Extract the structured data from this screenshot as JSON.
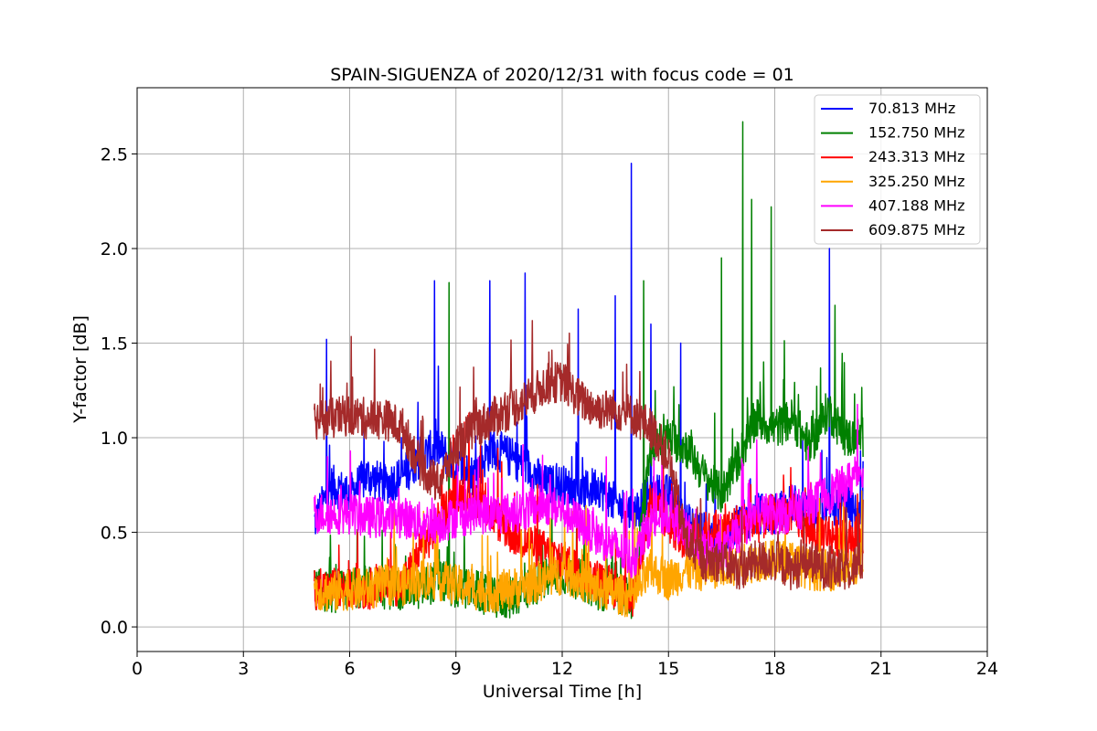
{
  "chart_data": {
    "type": "line",
    "title": "SPAIN-SIGUENZA of 2020/12/31 with focus code = 01",
    "xlabel": "Universal Time [h]",
    "ylabel": "Y-factor [dB]",
    "xlim": [
      0,
      24
    ],
    "ylim": [
      -0.13,
      2.85
    ],
    "xticks": [
      0,
      3,
      6,
      9,
      12,
      15,
      18,
      21,
      24
    ],
    "xtick_labels": [
      "0",
      "3",
      "6",
      "9",
      "12",
      "15",
      "18",
      "21",
      "24"
    ],
    "yticks": [
      0.0,
      0.5,
      1.0,
      1.5,
      2.0,
      2.5
    ],
    "ytick_labels": [
      "0.0",
      "0.5",
      "1.0",
      "1.5",
      "2.0",
      "2.5"
    ],
    "grid": true,
    "legend_position": "top-right",
    "series": [
      {
        "name": " 70.813 MHz",
        "color": "#0000ff",
        "x": [
          5.0,
          5.5,
          6.0,
          6.5,
          7.0,
          7.5,
          8.0,
          8.5,
          9.0,
          9.5,
          10.0,
          10.5,
          11.0,
          11.5,
          12.0,
          12.5,
          13.0,
          13.5,
          14.0,
          14.5,
          15.0,
          15.5,
          16.0,
          16.5,
          17.0,
          17.5,
          18.0,
          18.5,
          19.0,
          19.5,
          20.0,
          20.5
        ],
        "y": [
          0.55,
          0.75,
          0.7,
          0.8,
          0.75,
          0.8,
          0.9,
          0.95,
          0.85,
          0.8,
          0.95,
          0.9,
          0.85,
          0.75,
          0.75,
          0.7,
          0.75,
          0.65,
          0.6,
          0.7,
          0.7,
          0.55,
          0.5,
          0.45,
          0.55,
          0.6,
          0.6,
          0.65,
          0.6,
          0.6,
          0.65,
          0.55
        ],
        "spikes": [
          [
            5.35,
            1.52
          ],
          [
            8.4,
            1.83
          ],
          [
            9.95,
            1.83
          ],
          [
            10.95,
            1.87
          ],
          [
            12.45,
            1.68
          ],
          [
            13.5,
            1.75
          ],
          [
            13.95,
            2.45
          ],
          [
            14.5,
            1.6
          ],
          [
            15.35,
            1.5
          ],
          [
            19.55,
            2.0
          ]
        ]
      },
      {
        "name": "152.750 MHz",
        "color": "#008000",
        "x": [
          5.0,
          5.5,
          6.0,
          6.5,
          7.0,
          7.5,
          8.0,
          8.5,
          9.0,
          9.5,
          10.0,
          10.5,
          11.0,
          11.5,
          12.0,
          12.5,
          13.0,
          13.5,
          14.0,
          14.5,
          15.0,
          15.5,
          16.0,
          16.5,
          17.0,
          17.5,
          18.0,
          18.5,
          19.0,
          19.5,
          20.0,
          20.5
        ],
        "y": [
          0.2,
          0.18,
          0.2,
          0.22,
          0.2,
          0.2,
          0.2,
          0.25,
          0.2,
          0.2,
          0.15,
          0.15,
          0.2,
          0.25,
          0.28,
          0.25,
          0.2,
          0.18,
          0.15,
          0.95,
          1.0,
          0.95,
          0.8,
          0.7,
          0.9,
          1.1,
          1.05,
          1.1,
          0.95,
          1.15,
          1.0,
          1.0
        ],
        "spikes": [
          [
            8.8,
            1.82
          ],
          [
            14.3,
            1.83
          ],
          [
            17.1,
            2.67
          ],
          [
            17.35,
            2.26
          ],
          [
            17.9,
            2.22
          ],
          [
            16.5,
            1.95
          ],
          [
            19.7,
            1.7
          ]
        ]
      },
      {
        "name": "243.313 MHz",
        "color": "#ff0000",
        "x": [
          5.0,
          5.5,
          6.0,
          6.5,
          7.0,
          7.5,
          8.0,
          8.5,
          9.0,
          9.5,
          10.0,
          10.5,
          11.0,
          11.5,
          12.0,
          12.5,
          13.0,
          13.5,
          14.0,
          14.5,
          15.0,
          15.5,
          16.0,
          16.5,
          17.0,
          17.5,
          18.0,
          18.5,
          19.0,
          19.5,
          20.0,
          20.5
        ],
        "y": [
          0.2,
          0.2,
          0.2,
          0.2,
          0.22,
          0.22,
          0.4,
          0.55,
          0.7,
          0.7,
          0.6,
          0.5,
          0.45,
          0.4,
          0.35,
          0.3,
          0.25,
          0.2,
          0.15,
          0.65,
          0.55,
          0.45,
          0.5,
          0.5,
          0.55,
          0.55,
          0.6,
          0.6,
          0.5,
          0.5,
          0.45,
          0.5
        ],
        "spikes": []
      },
      {
        "name": "325.250 MHz",
        "color": "#ffa500",
        "x": [
          5.0,
          5.5,
          6.0,
          6.5,
          7.0,
          7.5,
          8.0,
          8.5,
          9.0,
          9.5,
          10.0,
          10.5,
          11.0,
          11.5,
          12.0,
          12.5,
          13.0,
          13.5,
          14.0,
          14.5,
          15.0,
          15.5,
          16.0,
          16.5,
          17.0,
          17.5,
          18.0,
          18.5,
          19.0,
          19.5,
          20.0,
          20.5
        ],
        "y": [
          0.2,
          0.18,
          0.2,
          0.2,
          0.22,
          0.22,
          0.25,
          0.25,
          0.22,
          0.2,
          0.18,
          0.2,
          0.22,
          0.25,
          0.28,
          0.25,
          0.2,
          0.18,
          0.15,
          0.3,
          0.25,
          0.3,
          0.3,
          0.32,
          0.32,
          0.35,
          0.35,
          0.35,
          0.3,
          0.3,
          0.3,
          0.35
        ],
        "spikes": []
      },
      {
        "name": "407.188 MHz",
        "color": "#ff00ff",
        "x": [
          5.0,
          5.5,
          6.0,
          6.5,
          7.0,
          7.5,
          8.0,
          8.5,
          9.0,
          9.5,
          10.0,
          10.5,
          11.0,
          11.5,
          12.0,
          12.5,
          13.0,
          13.5,
          14.0,
          14.5,
          15.0,
          15.5,
          16.0,
          16.5,
          17.0,
          17.5,
          18.0,
          18.5,
          19.0,
          19.5,
          20.0,
          20.5
        ],
        "y": [
          0.6,
          0.6,
          0.6,
          0.58,
          0.58,
          0.58,
          0.55,
          0.55,
          0.58,
          0.6,
          0.6,
          0.6,
          0.62,
          0.65,
          0.62,
          0.55,
          0.48,
          0.42,
          0.35,
          0.55,
          0.6,
          0.5,
          0.4,
          0.4,
          0.5,
          0.6,
          0.6,
          0.6,
          0.65,
          0.7,
          0.75,
          0.85
        ],
        "spikes": []
      },
      {
        "name": "609.875 MHz",
        "color": "#a52a2a",
        "x": [
          5.0,
          5.5,
          6.0,
          6.5,
          7.0,
          7.5,
          8.0,
          8.5,
          9.0,
          9.5,
          10.0,
          10.5,
          11.0,
          11.5,
          12.0,
          12.5,
          13.0,
          13.5,
          14.0,
          14.5,
          15.0,
          15.5,
          16.0,
          16.5,
          17.0,
          17.5,
          18.0,
          18.5,
          19.0,
          19.5,
          20.0,
          20.5
        ],
        "y": [
          1.1,
          1.1,
          1.12,
          1.1,
          1.1,
          1.05,
          0.85,
          0.75,
          0.95,
          1.05,
          1.1,
          1.15,
          1.2,
          1.28,
          1.3,
          1.2,
          1.15,
          1.15,
          1.12,
          1.05,
          0.9,
          0.45,
          0.35,
          0.35,
          0.3,
          0.35,
          0.35,
          0.3,
          0.35,
          0.3,
          0.3,
          0.35
        ],
        "spikes": []
      }
    ]
  }
}
